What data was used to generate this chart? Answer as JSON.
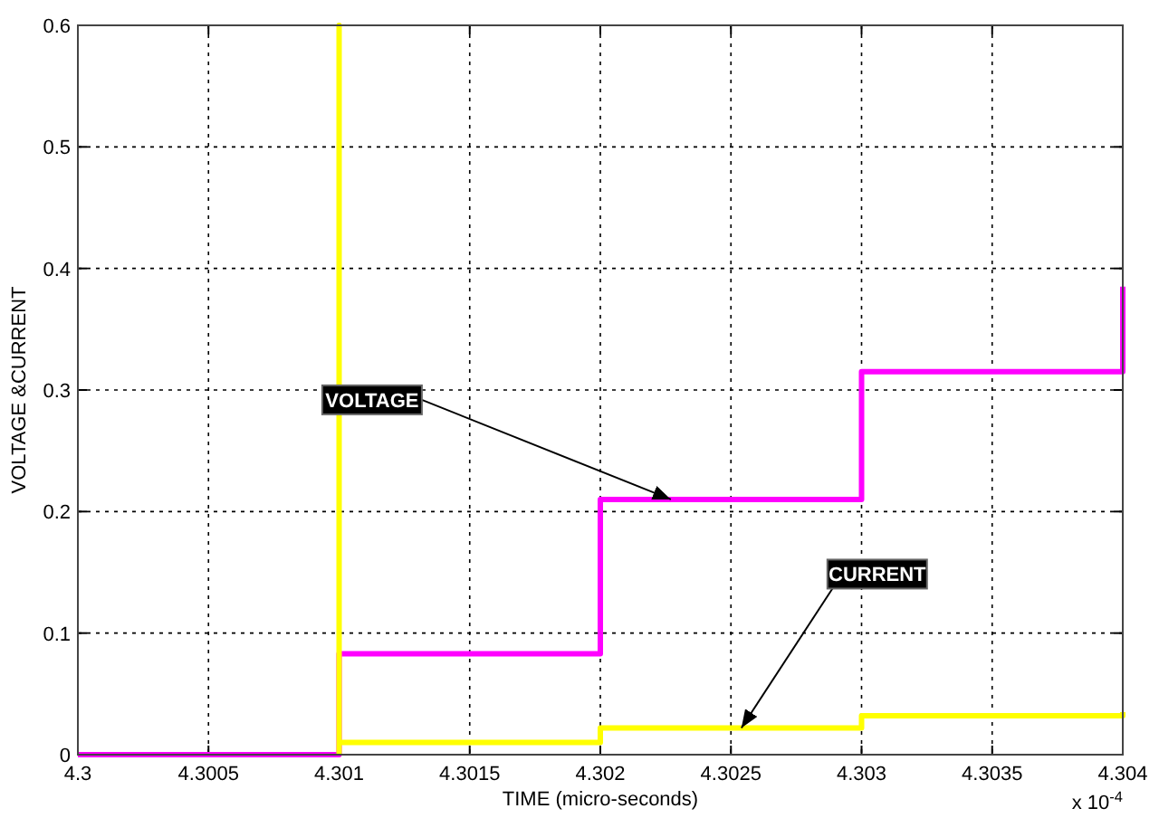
{
  "chart_data": {
    "type": "step",
    "xlabel": "TIME (micro-seconds)",
    "ylabel": "VOLTAGE &CURRENT",
    "series": [
      {
        "color": "#ff00ff",
        "x": [
          4.3,
          4.301,
          4.302,
          4.303,
          4.304
        ],
        "values": [
          0,
          0.083,
          0.21,
          0.315,
          0.385
        ]
      },
      {
        "color": "#ffff00",
        "x": [
          4.301,
          4.301,
          4.301,
          4.302,
          4.303,
          4.304
        ],
        "values": [
          0,
          0.6,
          0.01,
          0.022,
          0.032,
          0.035
        ]
      }
    ],
    "xlim": [
      4.3,
      4.304
    ],
    "xticks": [
      4.3,
      4.3005,
      4.301,
      4.3015,
      4.302,
      4.3025,
      4.303,
      4.3035,
      4.304
    ],
    "ylim": [
      0,
      0.6
    ],
    "yticks": [
      0,
      0.1,
      0.2,
      0.3,
      0.4,
      0.5,
      0.6
    ],
    "grid": true,
    "line_style": "solid",
    "marker": "none",
    "annotations": [
      {
        "text": "VOLTAGE",
        "x": 4.30227,
        "y": 0.21
      },
      {
        "text": "CURRENT",
        "x": 4.30254,
        "y": 0.022
      },
      "x 10$^{-4}$"
    ]
  }
}
